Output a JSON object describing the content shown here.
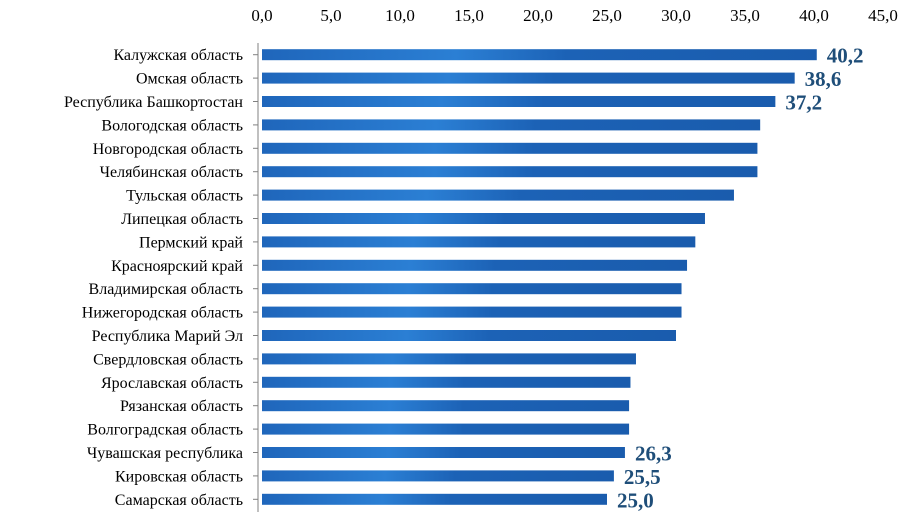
{
  "chart_data": {
    "type": "bar",
    "orientation": "horizontal",
    "title": "",
    "xlabel": "",
    "ylabel": "",
    "xlim": [
      0,
      45
    ],
    "grid": false,
    "x_axis_position": "top",
    "ticks": [
      "0,0",
      "5,0",
      "10,0",
      "15,0",
      "20,0",
      "25,0",
      "30,0",
      "35,0",
      "40,0",
      "45,0"
    ],
    "tick_values": [
      0,
      5,
      10,
      15,
      20,
      25,
      30,
      35,
      40,
      45
    ],
    "categories": [
      "Калужская область",
      "Омская область",
      "Республика Башкортостан",
      "Вологодская область",
      "Новгородская область",
      "Челябинская область",
      "Тульская область",
      "Липецкая область",
      "Пермский край",
      "Красноярский край",
      "Владимирская область",
      "Нижегородская область",
      "Республика Марий Эл",
      "Свердловская область",
      "Ярославская область",
      "Рязанская область",
      "Волгоградская область",
      "Чувашская республика",
      "Кировская область",
      "Самарская область"
    ],
    "values": [
      40.2,
      38.6,
      37.2,
      36.1,
      35.9,
      35.9,
      34.2,
      32.1,
      31.4,
      30.8,
      30.4,
      30.4,
      30.0,
      27.1,
      26.7,
      26.6,
      26.6,
      26.3,
      25.5,
      25.0
    ],
    "data_labels": [
      "40,2",
      "38,6",
      "37,2",
      "",
      "",
      "",
      "",
      "",
      "",
      "",
      "",
      "",
      "",
      "",
      "",
      "",
      "",
      "26,3",
      "25,5",
      "25,0"
    ],
    "bar_color": "#1f6bc1",
    "label_color": "#1f4e79"
  }
}
